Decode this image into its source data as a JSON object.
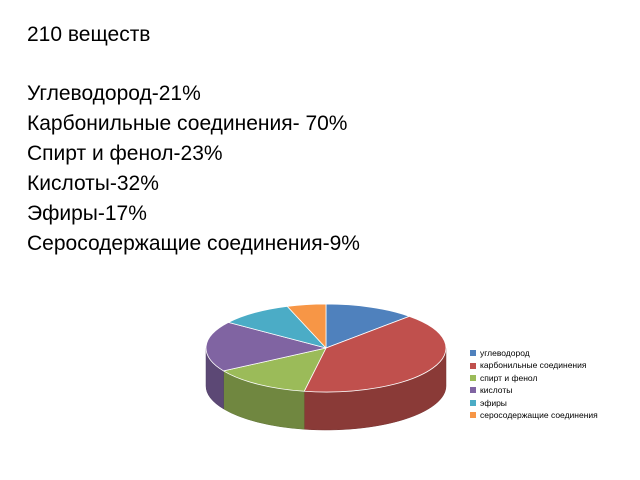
{
  "heading": "210 веществ",
  "items": [
    "Углеводород-21%",
    "Карбонильные соединения- 70%",
    "Спирт и фенол-23%",
    "Кислоты-32%",
    "Эфиры-17%",
    "Серосодержащие соединения-9%"
  ],
  "chart_data": {
    "type": "pie",
    "style": "3d",
    "title": "",
    "categories": [
      "углеводород",
      "карбонильные соединения",
      "спирт и фенол",
      "кислоты",
      "эфиры",
      "серосодержащие соединения"
    ],
    "values": [
      21,
      70,
      23,
      32,
      17,
      9
    ],
    "colors": [
      "#4f81bd",
      "#c0504d",
      "#9bbb59",
      "#8064a2",
      "#4bacc6",
      "#f79646"
    ],
    "legend_position": "right"
  }
}
